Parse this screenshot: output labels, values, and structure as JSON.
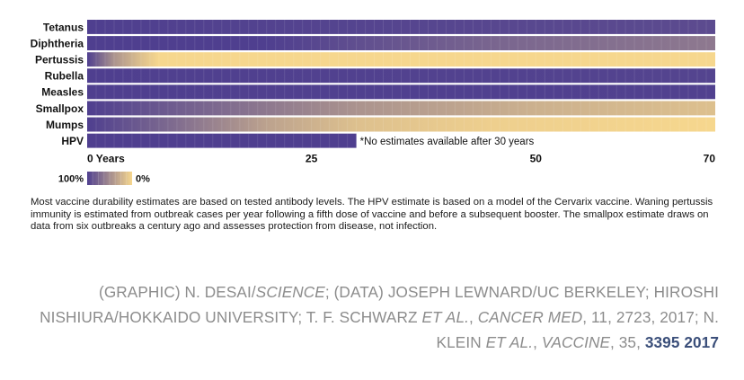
{
  "chart_data": {
    "type": "heatmap",
    "title": "",
    "xlabel": "",
    "ylabel": "",
    "x_min": 0,
    "x_max": 70,
    "xlim": [
      0,
      70
    ],
    "x_ticks": [
      {
        "value": 0,
        "label": "0 Years"
      },
      {
        "value": 25,
        "label": "25"
      },
      {
        "value": 50,
        "label": "50"
      },
      {
        "value": 70,
        "label": "70"
      }
    ],
    "color_scale": {
      "high_label": "100%",
      "low_label": "0%",
      "high_color": "#4f3f8f",
      "low_color": "#f6d78e"
    },
    "series": [
      {
        "name": "Tetanus",
        "profile": [
          [
            0,
            100
          ],
          [
            70,
            92
          ]
        ]
      },
      {
        "name": "Diphtheria",
        "profile": [
          [
            0,
            100
          ],
          [
            20,
            100
          ],
          [
            45,
            75
          ],
          [
            70,
            62
          ]
        ]
      },
      {
        "name": "Pertussis",
        "profile": [
          [
            0,
            100
          ],
          [
            3,
            45
          ],
          [
            6,
            15
          ],
          [
            8,
            0
          ],
          [
            70,
            0
          ]
        ]
      },
      {
        "name": "Rubella",
        "profile": [
          [
            0,
            100
          ],
          [
            70,
            97
          ]
        ]
      },
      {
        "name": "Measles",
        "profile": [
          [
            0,
            100
          ],
          [
            70,
            99
          ]
        ]
      },
      {
        "name": "Smallpox",
        "profile": [
          [
            0,
            100
          ],
          [
            10,
            80
          ],
          [
            30,
            45
          ],
          [
            50,
            25
          ],
          [
            70,
            15
          ]
        ]
      },
      {
        "name": "Mumps",
        "profile": [
          [
            0,
            100
          ],
          [
            10,
            70
          ],
          [
            20,
            35
          ],
          [
            30,
            15
          ],
          [
            45,
            5
          ],
          [
            70,
            0
          ]
        ]
      },
      {
        "name": "HPV",
        "profile": [
          [
            0,
            100
          ],
          [
            30,
            100
          ]
        ],
        "max_years": 30
      }
    ],
    "annotations": [
      {
        "series": "HPV",
        "text": "*No estimates available after 30 years"
      }
    ]
  },
  "footnote": "Most vaccine durability estimates are based on tested antibody levels. The HPV estimate is based on a model of the Cervarix vaccine. Waning pertussis immunity is estimated from outbreak cases per year following a fifth dose of vaccine and before a subsequent booster. The smallpox estimate draws on data from six outbreaks a century ago and assesses protection from disease, not infection.",
  "credits": {
    "p1": "(GRAPHIC) N. DESAI/",
    "p2": "SCIENCE",
    "p3": "; (DATA) JOSEPH LEWNARD/UC BERKELEY; HIROSHI NISHIURA/HOKKAIDO UNIVERSITY; T. F. SCHWARZ ",
    "p4": "ET AL.",
    "p5": ", ",
    "p6": "CANCER MED",
    "p7": ", 11, 2723, 2017; N. KLEIN ",
    "p8": "ET AL.",
    "p9": ", ",
    "p10": "VACCINE",
    "p11": ", 35, ",
    "link": "3395 2017"
  }
}
